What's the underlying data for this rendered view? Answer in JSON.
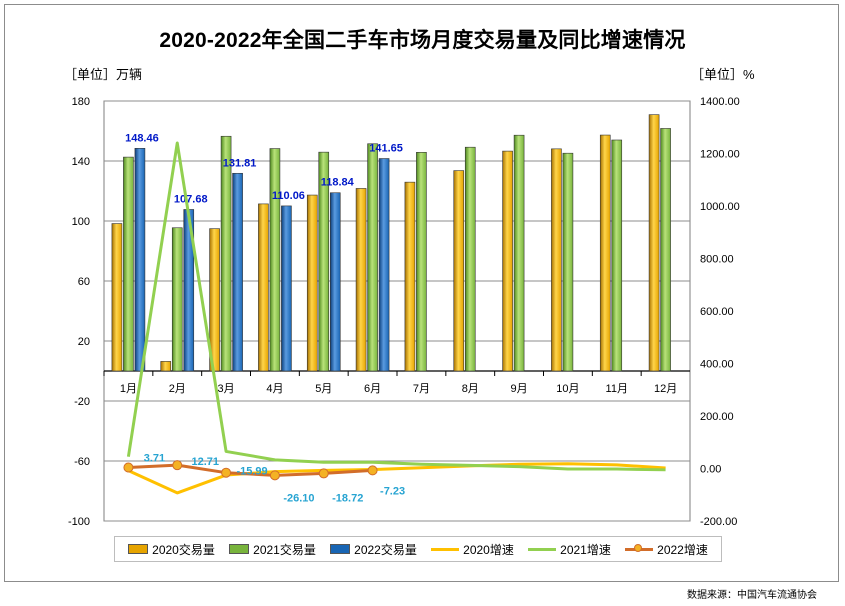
{
  "title": "2020-2022年全国二手车市场月度交易量及同比增速情况",
  "left_unit": "［单位］万辆",
  "right_unit": "［单位］%",
  "source": "数据来源：中国汽车流通协会",
  "colors": {
    "y2020_bar": "#e6a400",
    "y2021_bar": "#78b43c",
    "y2022_bar": "#1865b4",
    "y2020_line": "#ffc000",
    "y2021_line": "#92d050",
    "y2022_line": "#d26d2a",
    "y2022_marker": "#f4b224"
  },
  "chart_data": {
    "type": "bar",
    "title": "2020-2022年全国二手车市场月度交易量及同比增速情况",
    "categories": [
      "1月",
      "2月",
      "3月",
      "4月",
      "5月",
      "6月",
      "7月",
      "8月",
      "9月",
      "10月",
      "11月",
      "12月"
    ],
    "left_axis": {
      "label": "［单位］万辆",
      "min": -100,
      "max": 180,
      "ticks": [
        180,
        140,
        100,
        60,
        20,
        -20,
        -60,
        -100
      ]
    },
    "right_axis": {
      "label": "［单位］%",
      "min": -200,
      "max": 1400,
      "ticks": [
        "1400.00",
        "1200.00",
        "1000.00",
        "800.00",
        "600.00",
        "400.00",
        "200.00",
        "0.00",
        "-200.00"
      ]
    },
    "bar_series": [
      {
        "name": "2020交易量",
        "values": [
          98.3,
          6.4,
          94.9,
          111.4,
          117.3,
          121.7,
          125.9,
          133.6,
          146.6,
          148.1,
          157.3,
          170.9
        ]
      },
      {
        "name": "2021交易量",
        "values": [
          142.6,
          95.5,
          156.5,
          148.3,
          145.9,
          151.5,
          145.8,
          149.2,
          157.2,
          145.2,
          154.0,
          161.7
        ]
      },
      {
        "name": "2022交易量",
        "values": [
          148.46,
          107.68,
          131.81,
          110.06,
          118.84,
          141.65,
          null,
          null,
          null,
          null,
          null,
          null
        ],
        "labels": [
          "148.46",
          "107.68",
          "131.81",
          "110.06",
          "118.84",
          "141.65"
        ]
      }
    ],
    "line_series": [
      {
        "name": "2020增速",
        "axis": "right",
        "values": [
          -8.0,
          -93.0,
          -25.0,
          -12.0,
          -7.0,
          -4.0,
          3.0,
          10.0,
          16.0,
          18.0,
          14.0,
          2.0
        ]
      },
      {
        "name": "2021增速",
        "axis": "right",
        "values": [
          45.0,
          1240.0,
          65.0,
          33.0,
          24.0,
          24.0,
          16.0,
          12.0,
          7.0,
          -2.0,
          -2.0,
          -5.0
        ]
      },
      {
        "name": "2022增速",
        "axis": "right",
        "values": [
          3.71,
          12.71,
          -15.99,
          -26.1,
          -18.72,
          -7.23,
          null,
          null,
          null,
          null,
          null,
          null
        ],
        "labels": [
          "3.71",
          "12.71",
          "-15.99",
          "-26.10",
          "-18.72",
          "-7.23"
        ]
      }
    ],
    "legend": [
      "2020交易量",
      "2021交易量",
      "2022交易量",
      "2020增速",
      "2021增速",
      "2022增速"
    ],
    "legend_position": "bottom",
    "grid": true
  }
}
